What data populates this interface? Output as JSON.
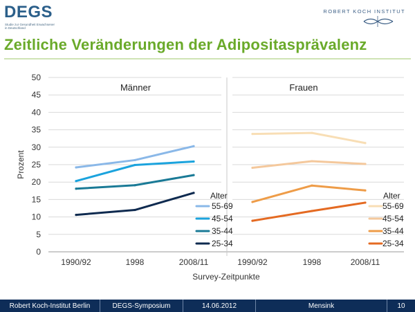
{
  "header": {
    "logo_title": "DEGS",
    "logo_sub": [
      "Studie zur Gesundheit Erwachsener",
      "in Deutschland"
    ],
    "institute": "ROBERT KOCH INSTITUT"
  },
  "title": "Zeitliche Veränderungen der Adipositasprävalenz",
  "chart_data": {
    "type": "line",
    "ylabel": "Prozent",
    "xlabel": "Survey-Zeitpunkte",
    "ylim": [
      0,
      50
    ],
    "yticks": [
      0,
      5,
      10,
      15,
      20,
      25,
      30,
      35,
      40,
      45,
      50
    ],
    "grid": true,
    "legend_title": "Alter",
    "panels": [
      {
        "title": "Männer",
        "categories": [
          "1990/92",
          "1998",
          "2008/11"
        ],
        "legend_placement": "right",
        "series": [
          {
            "name": "55-69",
            "color": "#8ab8e8",
            "values": [
              24.2,
              26.3,
              30.3
            ]
          },
          {
            "name": "45-54",
            "color": "#1ba3dd",
            "values": [
              20.3,
              24.9,
              25.9
            ]
          },
          {
            "name": "35-44",
            "color": "#1a7a96",
            "values": [
              18.1,
              19.1,
              22.0
            ]
          },
          {
            "name": "25-34",
            "color": "#0e2a4f",
            "values": [
              10.6,
              12.0,
              16.9
            ]
          }
        ]
      },
      {
        "title": "Frauen",
        "categories": [
          "1990/92",
          "1998",
          "2008/11"
        ],
        "legend_placement": "right",
        "series": [
          {
            "name": "55-69",
            "color": "#f8deb5",
            "values": [
              33.8,
              34.1,
              31.2
            ]
          },
          {
            "name": "45-54",
            "color": "#f4c89c",
            "values": [
              24.1,
              26.0,
              25.2
            ]
          },
          {
            "name": "35-44",
            "color": "#ee9c48",
            "values": [
              14.3,
              19.0,
              17.6
            ]
          },
          {
            "name": "25-34",
            "color": "#e46a22",
            "values": [
              8.9,
              11.7,
              14.1
            ]
          }
        ]
      }
    ]
  },
  "footer": {
    "org": "Robert Koch-Institut Berlin",
    "event": "DEGS-Symposium",
    "date": "14.06.2012",
    "author": "Mensink",
    "page": "10"
  }
}
